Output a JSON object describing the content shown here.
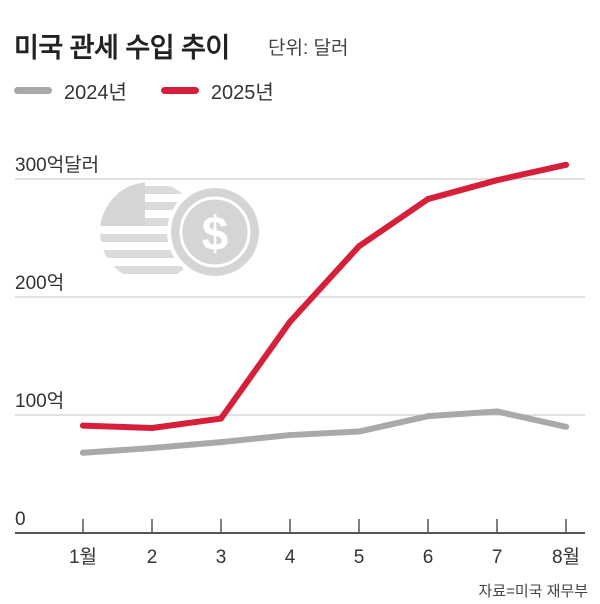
{
  "header": {
    "title": "미국 관세 수입 추이",
    "unit": "단위: 달러"
  },
  "source": "자료=미국 재무부",
  "chart_data": {
    "type": "line",
    "title": "미국 관세 수입 추이",
    "subtitle": "단위: 달러",
    "categories": [
      "1월",
      "2",
      "3",
      "4",
      "5",
      "6",
      "7",
      "8월"
    ],
    "yticks": [
      {
        "value": 0,
        "label": "0"
      },
      {
        "value": 100,
        "label": "100억"
      },
      {
        "value": 200,
        "label": "200억"
      },
      {
        "value": 300,
        "label": "300억달러"
      }
    ],
    "ylim": [
      0,
      300
    ],
    "ylabel": "억달러",
    "grid": true,
    "legend_position": "top-left",
    "series": [
      {
        "name": "2024년",
        "color": "#a9a9a9",
        "values": [
          68,
          72,
          77,
          83,
          86,
          99,
          103,
          90
        ]
      },
      {
        "name": "2025년",
        "color": "#d6203a",
        "values": [
          91,
          89,
          97,
          179,
          243,
          283,
          299,
          312
        ]
      }
    ]
  }
}
